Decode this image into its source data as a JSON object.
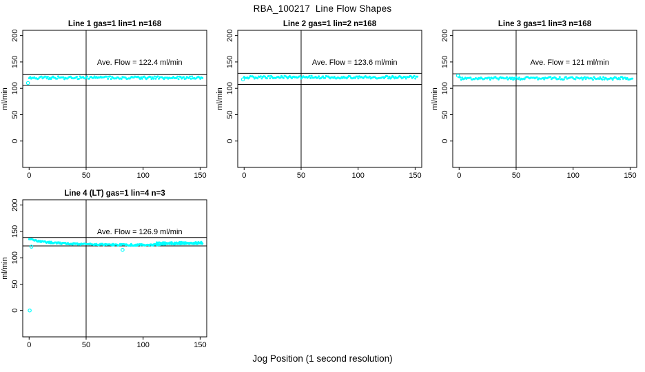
{
  "chart_data": {
    "type": "scatter",
    "title": "RBA_100217  Line Flow Shapes",
    "xlabel": "Jog Position (1 second resolution)",
    "ylabel": "ml/min",
    "x_ticks": [
      0,
      50,
      100,
      150
    ],
    "y_ticks": [
      0,
      50,
      100,
      150,
      200
    ],
    "xlim": [
      -5.6,
      155.8
    ],
    "ylim": [
      -50,
      210
    ],
    "grid": "off",
    "point_color": "#00FFFF",
    "line_color": "#000000",
    "vline_x": 50,
    "annotation_anchor": {
      "x": 97,
      "y": 145
    },
    "panels": [
      {
        "row": 0,
        "col": 0,
        "title": "Line 1 gas=1 lin=1 n=168",
        "annotation": "Ave. Flow =  122.4  ml/min",
        "ave_flow": 122.4,
        "n": 168,
        "ref_upper": 126,
        "ref_lower": 105.5,
        "profile": [
          [
            0,
            120
          ],
          [
            152,
            120
          ]
        ],
        "jitter": 2.6,
        "n_points": 168,
        "outliers": [
          [
            -1,
            110
          ]
        ]
      },
      {
        "row": 0,
        "col": 1,
        "title": "Line 2 gas=1 lin=2 n=168",
        "annotation": "Ave. Flow =  123.6  ml/min",
        "ave_flow": 123.6,
        "n": 168,
        "ref_upper": 128.5,
        "ref_lower": 107.5,
        "profile": [
          [
            0,
            121
          ],
          [
            152,
            121
          ]
        ],
        "jitter": 2.6,
        "n_points": 168,
        "outliers": [
          [
            -1,
            117
          ]
        ]
      },
      {
        "row": 0,
        "col": 2,
        "title": "Line 3 gas=1 lin=3 n=168",
        "annotation": "Ave. Flow =  121  ml/min",
        "ave_flow": 121,
        "n": 168,
        "ref_upper": 127.5,
        "ref_lower": 104.5,
        "profile": [
          [
            0,
            119
          ],
          [
            152,
            119
          ]
        ],
        "jitter": 2.6,
        "n_points": 168,
        "outliers": [
          [
            -1,
            124
          ]
        ]
      },
      {
        "row": 1,
        "col": 0,
        "title": "Line 4 (LT) gas=1 lin=4 n=3",
        "annotation": "Ave. Flow =  126.9  ml/min",
        "ave_flow": 126.9,
        "n": 3,
        "ref_upper": 138.5,
        "ref_lower": 122.5,
        "profile": [
          [
            0,
            136
          ],
          [
            4,
            133.5
          ],
          [
            10,
            131
          ],
          [
            20,
            128.8
          ],
          [
            35,
            126.8
          ],
          [
            55,
            125.3
          ],
          [
            75,
            124.6
          ],
          [
            95,
            124.3
          ],
          [
            108,
            124.3
          ],
          [
            118,
            126
          ],
          [
            130,
            127
          ],
          [
            152,
            127.5
          ]
        ],
        "jitter": 1.6,
        "n_points": 220,
        "profile2": [
          [
            112,
            127.5
          ],
          [
            152,
            128.3
          ]
        ],
        "n_points2": 80,
        "jitter2": 2.0,
        "outliers": [
          [
            0.5,
            0
          ],
          [
            2,
            121
          ],
          [
            82,
            115
          ]
        ]
      }
    ]
  }
}
